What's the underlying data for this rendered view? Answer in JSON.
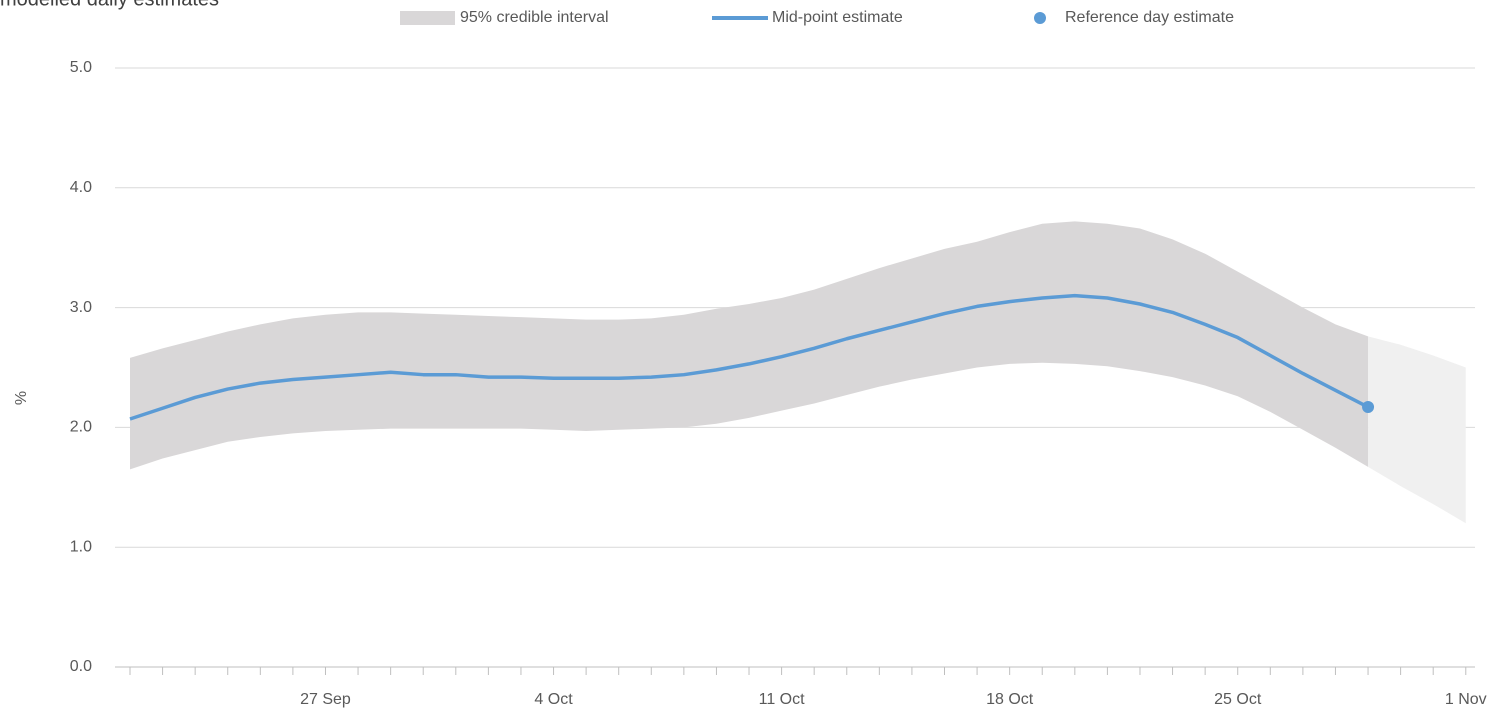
{
  "chart_data": {
    "type": "band-line",
    "title": "modelled daily estimates",
    "y_label": "%",
    "categories": [
      null,
      null,
      null,
      null,
      null,
      null,
      "27 Sep",
      null,
      null,
      null,
      null,
      null,
      null,
      "4 Oct",
      null,
      null,
      null,
      null,
      null,
      null,
      "11 Oct",
      null,
      null,
      null,
      null,
      null,
      null,
      "18 Oct",
      null,
      null,
      null,
      null,
      null,
      null,
      "25 Oct",
      null,
      null,
      null,
      null,
      null,
      null,
      "1 Nov"
    ],
    "ylim": [
      0,
      5
    ],
    "yticks": [
      {
        "value": 0,
        "label": "0.0"
      },
      {
        "value": 1,
        "label": "1.0"
      },
      {
        "value": 2,
        "label": "2.0"
      },
      {
        "value": 3,
        "label": "3.0"
      },
      {
        "value": 4,
        "label": "4.0"
      },
      {
        "value": 5,
        "label": "5.0"
      }
    ],
    "grid": true,
    "band": {
      "name": "95% credible interval",
      "color": "#d9d7d8",
      "upper": [
        2.58,
        2.66,
        2.73,
        2.8,
        2.86,
        2.91,
        2.94,
        2.96,
        2.96,
        2.95,
        2.94,
        2.93,
        2.92,
        2.91,
        2.9,
        2.9,
        2.91,
        2.94,
        2.99,
        3.03,
        3.08,
        3.15,
        3.24,
        3.33,
        3.41,
        3.49,
        3.55,
        3.63,
        3.7,
        3.72,
        3.7,
        3.66,
        3.57,
        3.45,
        3.3,
        3.15,
        3.0,
        2.86,
        2.76,
        null,
        null,
        null
      ],
      "lower": [
        1.65,
        1.74,
        1.81,
        1.88,
        1.92,
        1.95,
        1.97,
        1.98,
        1.99,
        1.99,
        1.99,
        1.99,
        1.99,
        1.98,
        1.97,
        1.98,
        1.99,
        2.0,
        2.03,
        2.08,
        2.14,
        2.2,
        2.27,
        2.34,
        2.4,
        2.45,
        2.5,
        2.53,
        2.54,
        2.53,
        2.51,
        2.47,
        2.42,
        2.35,
        2.26,
        2.13,
        1.98,
        1.83,
        1.67,
        null,
        null,
        null
      ]
    },
    "projection": {
      "color": "#f0f0f0",
      "upper": [
        null,
        null,
        null,
        null,
        null,
        null,
        null,
        null,
        null,
        null,
        null,
        null,
        null,
        null,
        null,
        null,
        null,
        null,
        null,
        null,
        null,
        null,
        null,
        null,
        null,
        null,
        null,
        null,
        null,
        null,
        null,
        null,
        null,
        null,
        null,
        null,
        null,
        null,
        2.76,
        2.69,
        2.6,
        2.5
      ],
      "lower": [
        null,
        null,
        null,
        null,
        null,
        null,
        null,
        null,
        null,
        null,
        null,
        null,
        null,
        null,
        null,
        null,
        null,
        null,
        null,
        null,
        null,
        null,
        null,
        null,
        null,
        null,
        null,
        null,
        null,
        null,
        null,
        null,
        null,
        null,
        null,
        null,
        null,
        null,
        1.67,
        1.51,
        1.36,
        1.2
      ]
    },
    "series": [
      {
        "name": "Mid-point estimate",
        "color": "#5b9bd5",
        "values": [
          2.07,
          2.16,
          2.25,
          2.32,
          2.37,
          2.4,
          2.42,
          2.44,
          2.46,
          2.44,
          2.44,
          2.42,
          2.42,
          2.41,
          2.41,
          2.41,
          2.42,
          2.44,
          2.48,
          2.53,
          2.59,
          2.66,
          2.74,
          2.81,
          2.88,
          2.95,
          3.01,
          3.05,
          3.08,
          3.1,
          3.08,
          3.03,
          2.96,
          2.86,
          2.75,
          2.6,
          2.45,
          2.31,
          2.17,
          null,
          null,
          null
        ]
      },
      {
        "name": "Reference day estimate",
        "color": "#5b9bd5",
        "values": [
          null,
          null,
          null,
          null,
          null,
          null,
          null,
          null,
          null,
          null,
          null,
          null,
          null,
          null,
          null,
          null,
          null,
          null,
          null,
          null,
          null,
          null,
          null,
          null,
          null,
          null,
          null,
          null,
          null,
          null,
          null,
          null,
          null,
          null,
          null,
          null,
          null,
          null,
          2.17,
          null,
          null,
          null
        ]
      }
    ]
  }
}
